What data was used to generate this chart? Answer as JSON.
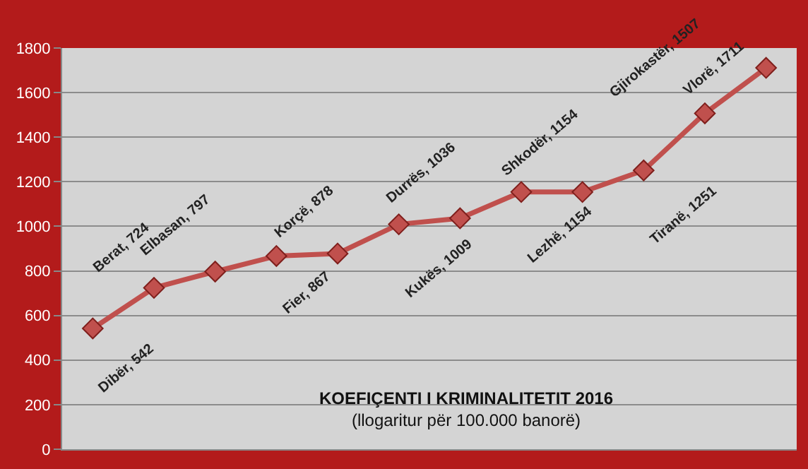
{
  "chart_data": {
    "type": "line",
    "title": "KOEFIÇENTI I KRIMINALITETIT 2016",
    "subtitle": "(llogaritur për 100.000 banorë)",
    "categories": [
      null,
      null,
      null,
      null,
      null,
      null,
      null,
      null,
      null,
      null,
      null,
      null
    ],
    "series": [
      {
        "color": "#c0504d",
        "values": [
          542,
          724,
          797,
          867,
          878,
          1009,
          1036,
          1154,
          1154,
          1251,
          1507,
          1711
        ],
        "value_labels": [
          "Dibër, 542",
          "Berat, 724",
          "Elbasan, 797",
          "Fier, 867",
          "Korçë, 878",
          "Kukës, 1009",
          "Durrës, 1036",
          "Lezhë, 1154",
          "Shkodër, 1154",
          "Tiranë, 1251",
          "Gjirokastër, 1507",
          "Vlorë, 1711"
        ]
      }
    ],
    "ylim": [
      0,
      1800
    ],
    "yticks": [
      0,
      200,
      400,
      600,
      800,
      1000,
      1200,
      1400,
      1600,
      1800
    ],
    "grid": "y",
    "marker": "diamond",
    "line_style": "solid",
    "tick_labels": "y"
  }
}
